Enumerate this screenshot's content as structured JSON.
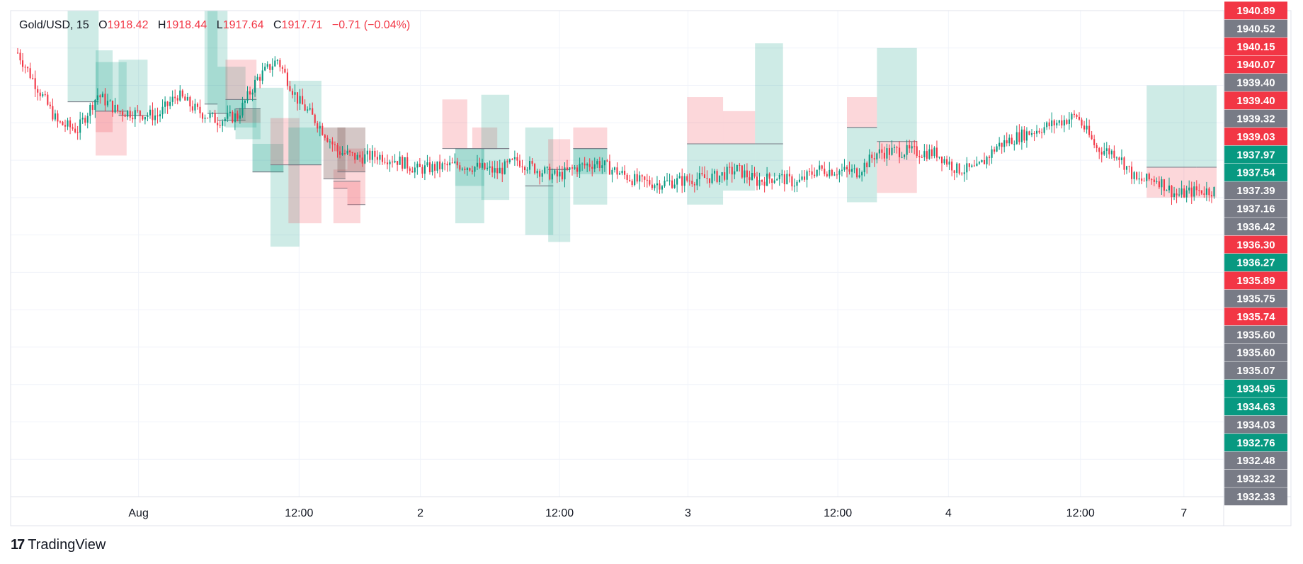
{
  "legend": {
    "symbol": "Gold/USD",
    "interval": "15",
    "open_label": "O",
    "open": "1918.42",
    "high_label": "H",
    "high": "1918.44",
    "low_label": "L",
    "low": "1917.64",
    "close_label": "C",
    "close": "1917.71",
    "change": "−0.71",
    "change_pct": "(−0.04%)"
  },
  "branding": {
    "name": "TradingView",
    "logo_mark": "17"
  },
  "colors": {
    "up": "#089981",
    "down": "#f23645",
    "label_gray": "#787b86",
    "green_zone": "rgba(8,153,129,0.2)",
    "red_zone": "rgba(242,54,69,0.2)",
    "grid": "#f0f3fa"
  },
  "chart_data": {
    "type": "candlestick",
    "x_tick_labels": [
      "Aug",
      "12:00",
      "2",
      "12:00",
      "3",
      "12:00",
      "4",
      "12:00",
      "7"
    ],
    "y_range": [
      1920.3,
      1941.1
    ],
    "price_labels": [
      {
        "value": 1940.89,
        "text": "1940.89",
        "color": "red"
      },
      {
        "value": 1940.52,
        "text": "1940.52",
        "color": "gray"
      },
      {
        "value": 1940.15,
        "text": "1940.15",
        "color": "red"
      },
      {
        "value": 1940.07,
        "text": "1940.07",
        "color": "red"
      },
      {
        "value": 1939.4,
        "text": "1939.40",
        "color": "gray"
      },
      {
        "value": 1939.4,
        "text": "1939.40",
        "color": "red"
      },
      {
        "value": 1939.32,
        "text": "1939.32",
        "color": "gray"
      },
      {
        "value": 1939.03,
        "text": "1939.03",
        "color": "red"
      },
      {
        "value": 1937.97,
        "text": "1937.97",
        "color": "green"
      },
      {
        "value": 1937.54,
        "text": "1937.54",
        "color": "green"
      },
      {
        "value": 1937.39,
        "text": "1937.39",
        "color": "gray"
      },
      {
        "value": 1937.16,
        "text": "1937.16",
        "color": "gray"
      },
      {
        "value": 1936.42,
        "text": "1936.42",
        "color": "gray"
      },
      {
        "value": 1936.3,
        "text": "1936.30",
        "color": "red"
      },
      {
        "value": 1936.27,
        "text": "1936.27",
        "color": "green"
      },
      {
        "value": 1935.89,
        "text": "1935.89",
        "color": "red"
      },
      {
        "value": 1935.75,
        "text": "1935.75",
        "color": "gray"
      },
      {
        "value": 1935.74,
        "text": "1935.74",
        "color": "red"
      },
      {
        "value": 1935.6,
        "text": "1935.60",
        "color": "gray"
      },
      {
        "value": 1935.6,
        "text": "1935.60",
        "color": "gray"
      },
      {
        "value": 1935.07,
        "text": "1935.07",
        "color": "gray"
      },
      {
        "value": 1934.95,
        "text": "1934.95",
        "color": "green"
      },
      {
        "value": 1934.63,
        "text": "1934.63",
        "color": "green"
      },
      {
        "value": 1934.03,
        "text": "1934.03",
        "color": "gray"
      },
      {
        "value": 1932.76,
        "text": "1932.76",
        "color": "green"
      },
      {
        "value": 1932.48,
        "text": "1932.48",
        "color": "gray"
      },
      {
        "value": 1932.32,
        "text": "1932.32",
        "color": "gray"
      },
      {
        "value": 1932.33,
        "text": "1932.33",
        "color": "gray"
      }
    ],
    "waypoints": [
      [
        0,
        1939.3
      ],
      [
        4,
        1936.3
      ],
      [
        6,
        1936.0
      ],
      [
        8,
        1937.5
      ],
      [
        10,
        1936.8
      ],
      [
        14,
        1936.6
      ],
      [
        16,
        1937.5
      ],
      [
        18,
        1936.8
      ],
      [
        20,
        1936.4
      ],
      [
        22,
        1936.6
      ],
      [
        24,
        1938.2
      ],
      [
        26,
        1939.0
      ],
      [
        28,
        1937.3
      ],
      [
        30,
        1936.3
      ],
      [
        32,
        1935.1
      ],
      [
        34,
        1934.8
      ],
      [
        36,
        1934.9
      ],
      [
        38,
        1934.7
      ],
      [
        40,
        1934.3
      ],
      [
        44,
        1934.5
      ],
      [
        46,
        1934.4
      ],
      [
        48,
        1934.2
      ],
      [
        50,
        1934.7
      ],
      [
        52,
        1934.3
      ],
      [
        54,
        1934.0
      ],
      [
        56,
        1934.4
      ],
      [
        58,
        1934.6
      ],
      [
        60,
        1934.2
      ],
      [
        62,
        1933.8
      ],
      [
        64,
        1933.7
      ],
      [
        66,
        1933.8
      ],
      [
        68,
        1933.9
      ],
      [
        70,
        1934.0
      ],
      [
        72,
        1934.3
      ],
      [
        74,
        1933.8
      ],
      [
        76,
        1934.0
      ],
      [
        78,
        1933.7
      ],
      [
        80,
        1934.3
      ],
      [
        84,
        1934.2
      ],
      [
        86,
        1935.0
      ],
      [
        88,
        1935.1
      ],
      [
        92,
        1935.0
      ],
      [
        94,
        1934.3
      ],
      [
        96,
        1934.3
      ],
      [
        98,
        1935.3
      ],
      [
        100,
        1935.7
      ],
      [
        104,
        1936.3
      ],
      [
        106,
        1936.6
      ],
      [
        108,
        1935.2
      ],
      [
        110,
        1935.0
      ],
      [
        112,
        1933.8
      ],
      [
        114,
        1933.9
      ],
      [
        116,
        1933.2
      ],
      [
        118,
        1933.4
      ],
      [
        120,
        1933.4
      ]
    ],
    "tp_sl_zones": [
      {
        "x0": 5.0,
        "x1": 8.1,
        "entry": 1937.2,
        "tp": 1941.1,
        "sl": 1937.2
      },
      {
        "x0": 7.8,
        "x1": 10.9,
        "entry": 1936.8,
        "tp": 1938.9,
        "sl": 1934.9
      },
      {
        "x0": 7.8,
        "x1": 9.5,
        "entry": 1936.8,
        "tp": 1939.4,
        "sl": 1935.9
      },
      {
        "x0": 10.1,
        "x1": 13.0,
        "entry": 1936.6,
        "tp": 1939.0,
        "sl": 1936.6
      },
      {
        "x0": 18.7,
        "x1": 20.0,
        "entry": 1937.1,
        "tp": 1941.1,
        "sl": 1937.1
      },
      {
        "x0": 20.0,
        "x1": 22.8,
        "entry": 1936.4,
        "tp": 1938.7,
        "sl": 1936.4
      },
      {
        "x0": 19.0,
        "x1": 21.0,
        "entry": 1936.7,
        "tp": 1941.1,
        "sl": 1936.7
      },
      {
        "x0": 20.8,
        "x1": 23.9,
        "entry": 1937.3,
        "tp": 1936.1,
        "sl": 1939.0
      },
      {
        "x0": 21.8,
        "x1": 24.3,
        "entry": 1936.9,
        "tp": 1935.6,
        "sl": 1936.3
      },
      {
        "x0": 23.5,
        "x1": 26.6,
        "entry": 1934.2,
        "tp": 1935.4,
        "sl": 1934.2
      },
      {
        "x0": 23.5,
        "x1": 26.6,
        "entry": 1934.2,
        "tp": 1937.8,
        "sl": 1934.2
      },
      {
        "x0": 25.3,
        "x1": 28.2,
        "entry": 1934.5,
        "tp": 1931.0,
        "sl": 1936.5
      },
      {
        "x0": 27.1,
        "x1": 30.4,
        "entry": 1934.5,
        "tp": 1936.1,
        "sl": 1934.5
      },
      {
        "x0": 27.1,
        "x1": 30.4,
        "entry": 1934.5,
        "tp": 1938.1,
        "sl": 1932.0
      },
      {
        "x0": 31.6,
        "x1": 33.0,
        "entry": 1933.5,
        "tp": 1933.5,
        "sl": 1934.3
      },
      {
        "x0": 33.0,
        "x1": 34.8,
        "entry": 1932.8,
        "tp": 1932.8,
        "sl": 1935.2
      },
      {
        "x0": 30.6,
        "x1": 32.8,
        "entry": 1933.9,
        "tp": 1936.1,
        "sl": 1936.1
      },
      {
        "x0": 31.6,
        "x1": 34.3,
        "entry": 1933.8,
        "tp": 1933.8,
        "sl": 1932.0
      },
      {
        "x0": 32.0,
        "x1": 34.8,
        "entry": 1934.2,
        "tp": 1936.1,
        "sl": 1936.1
      },
      {
        "x0": 42.5,
        "x1": 45.0,
        "entry": 1935.2,
        "tp": 1935.2,
        "sl": 1937.3
      },
      {
        "x0": 45.5,
        "x1": 48.0,
        "entry": 1935.2,
        "tp": 1935.2,
        "sl": 1936.1
      },
      {
        "x0": 43.8,
        "x1": 46.7,
        "entry": 1935.2,
        "tp": 1933.6,
        "sl": 1935.2
      },
      {
        "x0": 43.8,
        "x1": 46.7,
        "entry": 1935.2,
        "tp": 1932.0,
        "sl": 1935.2
      },
      {
        "x0": 46.4,
        "x1": 49.2,
        "entry": 1935.2,
        "tp": 1937.5,
        "sl": 1935.2
      },
      {
        "x0": 46.4,
        "x1": 49.2,
        "entry": 1935.2,
        "tp": 1933.0,
        "sl": 1935.2
      },
      {
        "x0": 50.8,
        "x1": 53.6,
        "entry": 1933.6,
        "tp": 1936.1,
        "sl": 1933.6
      },
      {
        "x0": 50.8,
        "x1": 53.6,
        "entry": 1933.6,
        "tp": 1931.5,
        "sl": 1933.6
      },
      {
        "x0": 53.1,
        "x1": 55.3,
        "entry": 1934.3,
        "tp": 1934.3,
        "sl": 1935.6
      },
      {
        "x0": 53.1,
        "x1": 55.3,
        "entry": 1934.3,
        "tp": 1931.2,
        "sl": 1934.3
      },
      {
        "x0": 55.6,
        "x1": 59.0,
        "entry": 1935.2,
        "tp": 1935.2,
        "sl": 1936.1
      },
      {
        "x0": 55.6,
        "x1": 59.0,
        "entry": 1935.2,
        "tp": 1932.8,
        "sl": 1935.2
      },
      {
        "x0": 55.6,
        "x1": 59.0,
        "entry": 1935.2,
        "tp": 1934.1,
        "sl": 1935.2
      },
      {
        "x0": 67.0,
        "x1": 70.6,
        "entry": 1935.4,
        "tp": 1935.4,
        "sl": 1937.4
      },
      {
        "x0": 67.0,
        "x1": 70.6,
        "entry": 1935.4,
        "tp": 1932.8,
        "sl": 1935.4
      },
      {
        "x0": 70.6,
        "x1": 73.8,
        "entry": 1935.4,
        "tp": 1935.4,
        "sl": 1936.8
      },
      {
        "x0": 70.6,
        "x1": 73.8,
        "entry": 1935.4,
        "tp": 1933.4,
        "sl": 1935.4
      },
      {
        "x0": 73.8,
        "x1": 76.6,
        "entry": 1935.4,
        "tp": 1939.7,
        "sl": 1935.4
      },
      {
        "x0": 73.8,
        "x1": 76.6,
        "entry": 1935.4,
        "tp": 1934.0,
        "sl": 1935.4
      },
      {
        "x0": 83.0,
        "x1": 86.0,
        "entry": 1936.1,
        "tp": 1936.1,
        "sl": 1937.4
      },
      {
        "x0": 83.0,
        "x1": 86.0,
        "entry": 1936.1,
        "tp": 1932.9,
        "sl": 1936.1
      },
      {
        "x0": 86.0,
        "x1": 90.0,
        "entry": 1935.5,
        "tp": 1939.5,
        "sl": 1933.3
      },
      {
        "x0": 113.0,
        "x1": 118.0,
        "entry": 1934.4,
        "tp": 1937.9,
        "sl": 1933.1
      },
      {
        "x0": 118.0,
        "x1": 120.0,
        "entry": 1934.4,
        "tp": 1937.9,
        "sl": 1933.1
      }
    ],
    "grid": true,
    "legend_position": "top-left"
  }
}
